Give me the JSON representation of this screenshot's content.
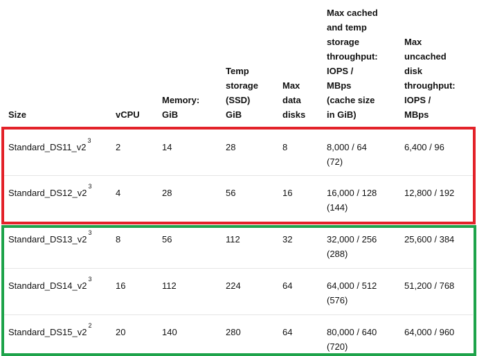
{
  "headers": {
    "size": "Size",
    "vcpu": "vCPU",
    "memory": "Memory:\nGiB",
    "temp": "Temp\nstorage\n(SSD)\nGiB",
    "disks": "Max\ndata\ndisks",
    "cached": "Max cached\nand temp\nstorage\nthroughput:\nIOPS /\nMBps\n(cache size\nin GiB)",
    "uncached": "Max\nuncached\ndisk\nthroughput:\nIOPS /\nMBps"
  },
  "rows": [
    {
      "size": "Standard_DS11_v2",
      "note": "3",
      "vcpu": "2",
      "memory": "14",
      "temp": "28",
      "disks": "8",
      "cached": "8,000 / 64\n(72)",
      "uncached": "6,400 / 96"
    },
    {
      "size": "Standard_DS12_v2",
      "note": "3",
      "vcpu": "4",
      "memory": "28",
      "temp": "56",
      "disks": "16",
      "cached": "16,000 / 128\n(144)",
      "uncached": "12,800 / 192"
    },
    {
      "size": "Standard_DS13_v2",
      "note": "3",
      "vcpu": "8",
      "memory": "56",
      "temp": "112",
      "disks": "32",
      "cached": "32,000 / 256\n(288)",
      "uncached": "25,600 / 384"
    },
    {
      "size": "Standard_DS14_v2",
      "note": "3",
      "vcpu": "16",
      "memory": "112",
      "temp": "224",
      "disks": "64",
      "cached": "64,000 / 512\n(576)",
      "uncached": "51,200 / 768"
    },
    {
      "size": "Standard_DS15_v2",
      "note": "2",
      "vcpu": "20",
      "memory": "140",
      "temp": "280",
      "disks": "64",
      "cached": "80,000 / 640\n(720)",
      "uncached": "64,000 / 960"
    }
  ],
  "highlights": {
    "red_color": "#e32229",
    "green_color": "#1ea34a"
  }
}
